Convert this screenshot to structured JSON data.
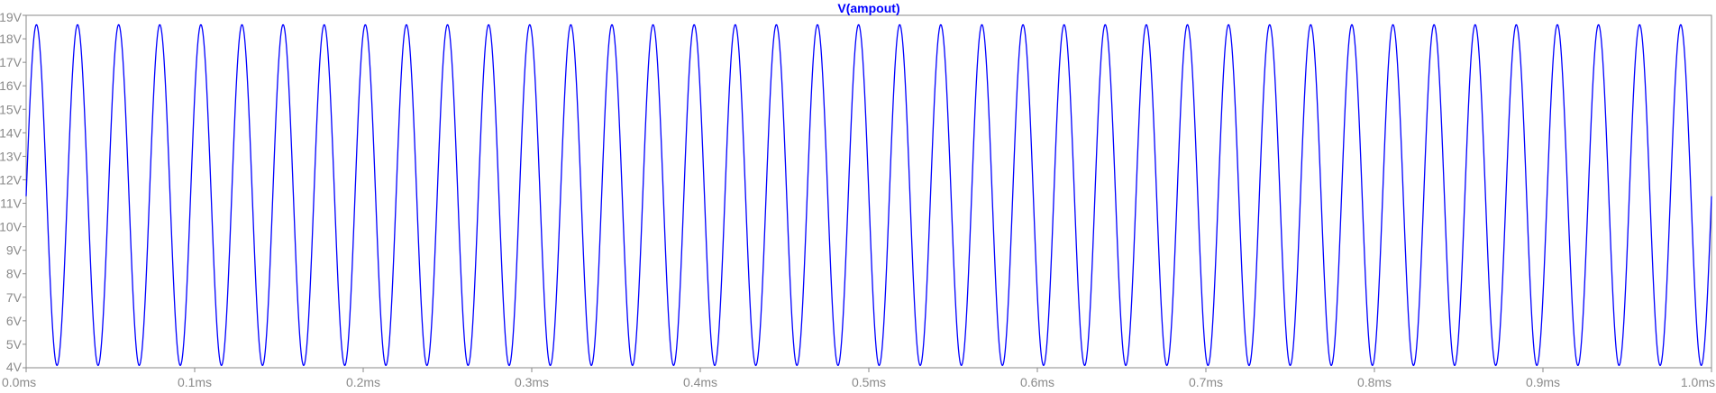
{
  "chart_data": {
    "type": "line",
    "title": "V(ampout)",
    "xlabel": "",
    "ylabel": "",
    "xlim": [
      0.0,
      1.0
    ],
    "ylim": [
      4,
      19
    ],
    "x_unit": "ms",
    "y_unit": "V",
    "x_ticks": [
      "0.0ms",
      "0.1ms",
      "0.2ms",
      "0.3ms",
      "0.4ms",
      "0.5ms",
      "0.6ms",
      "0.7ms",
      "0.8ms",
      "0.9ms",
      "1.0ms"
    ],
    "x_tick_values": [
      0.0,
      0.1,
      0.2,
      0.3,
      0.4,
      0.5,
      0.6,
      0.7,
      0.8,
      0.9,
      1.0
    ],
    "y_ticks": [
      "4V",
      "5V",
      "6V",
      "7V",
      "8V",
      "9V",
      "10V",
      "11V",
      "12V",
      "13V",
      "14V",
      "15V",
      "16V",
      "17V",
      "18V",
      "19V"
    ],
    "y_tick_values": [
      4,
      5,
      6,
      7,
      8,
      9,
      10,
      11,
      12,
      13,
      14,
      15,
      16,
      17,
      18,
      19
    ],
    "grid": false,
    "series": [
      {
        "name": "V(ampout)",
        "color": "#0000ff",
        "waveform": "sine",
        "frequency_khz": 41,
        "min": 4.1,
        "max": 18.6,
        "start_value": 11.3,
        "end_value": 10.1
      }
    ],
    "colors": {
      "trace": "#0000ff",
      "axis": "#8a8a8a",
      "background": "#ffffff"
    }
  }
}
